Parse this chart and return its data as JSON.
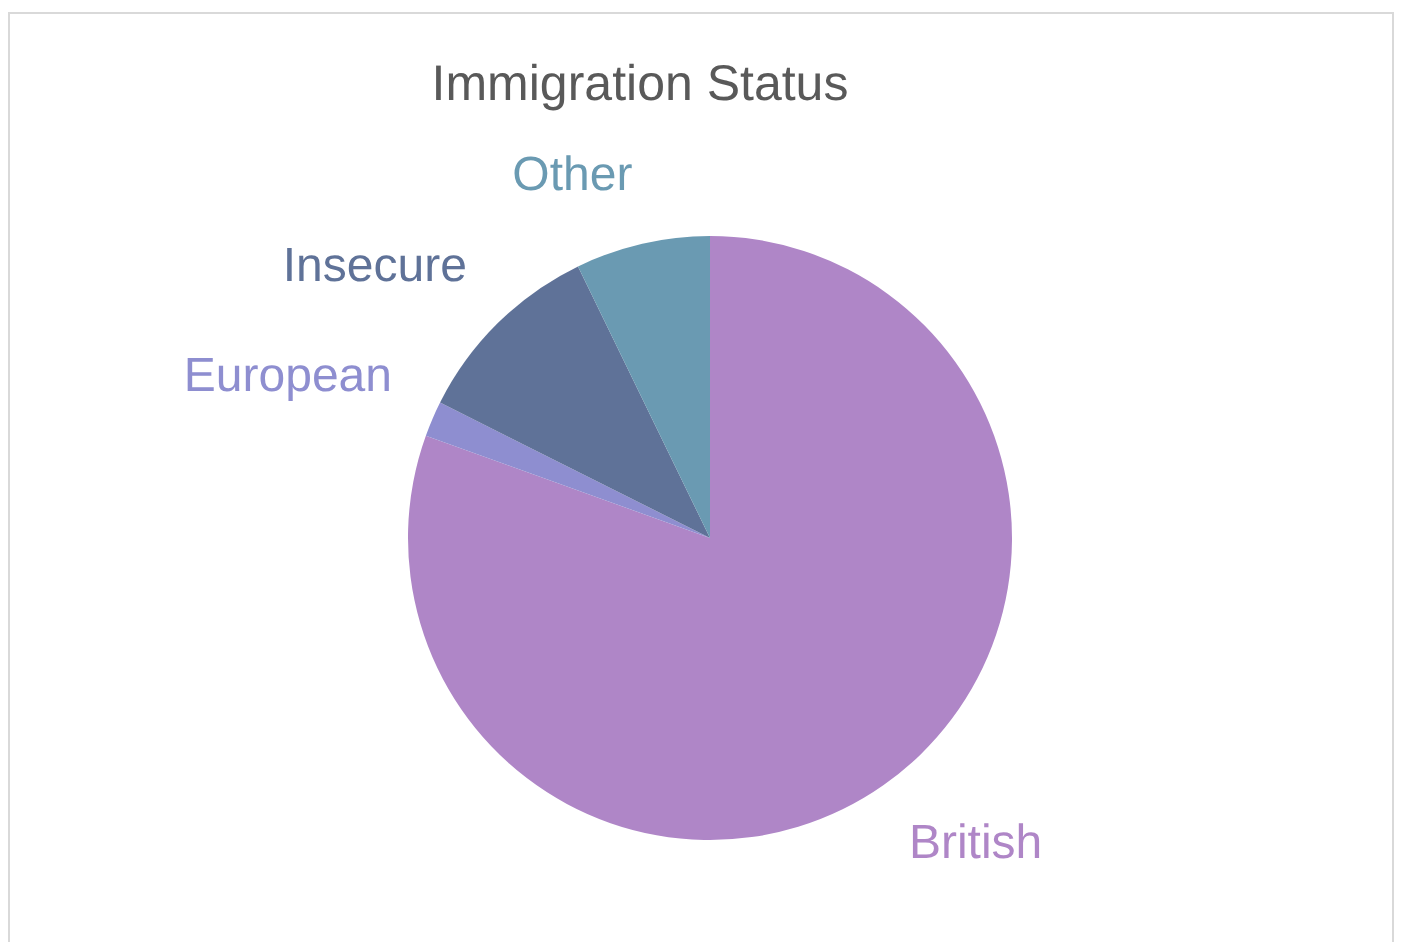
{
  "chart_data": {
    "type": "pie",
    "title": "Immigration Status",
    "categories": [
      "British",
      "European",
      "Insecure",
      "Other"
    ],
    "values": [
      80.5,
      1.9,
      10.4,
      7.2
    ],
    "colors": [
      "#af86c7",
      "#8e8ed0",
      "#5f7298",
      "#6a9ab2"
    ],
    "legend": false
  }
}
